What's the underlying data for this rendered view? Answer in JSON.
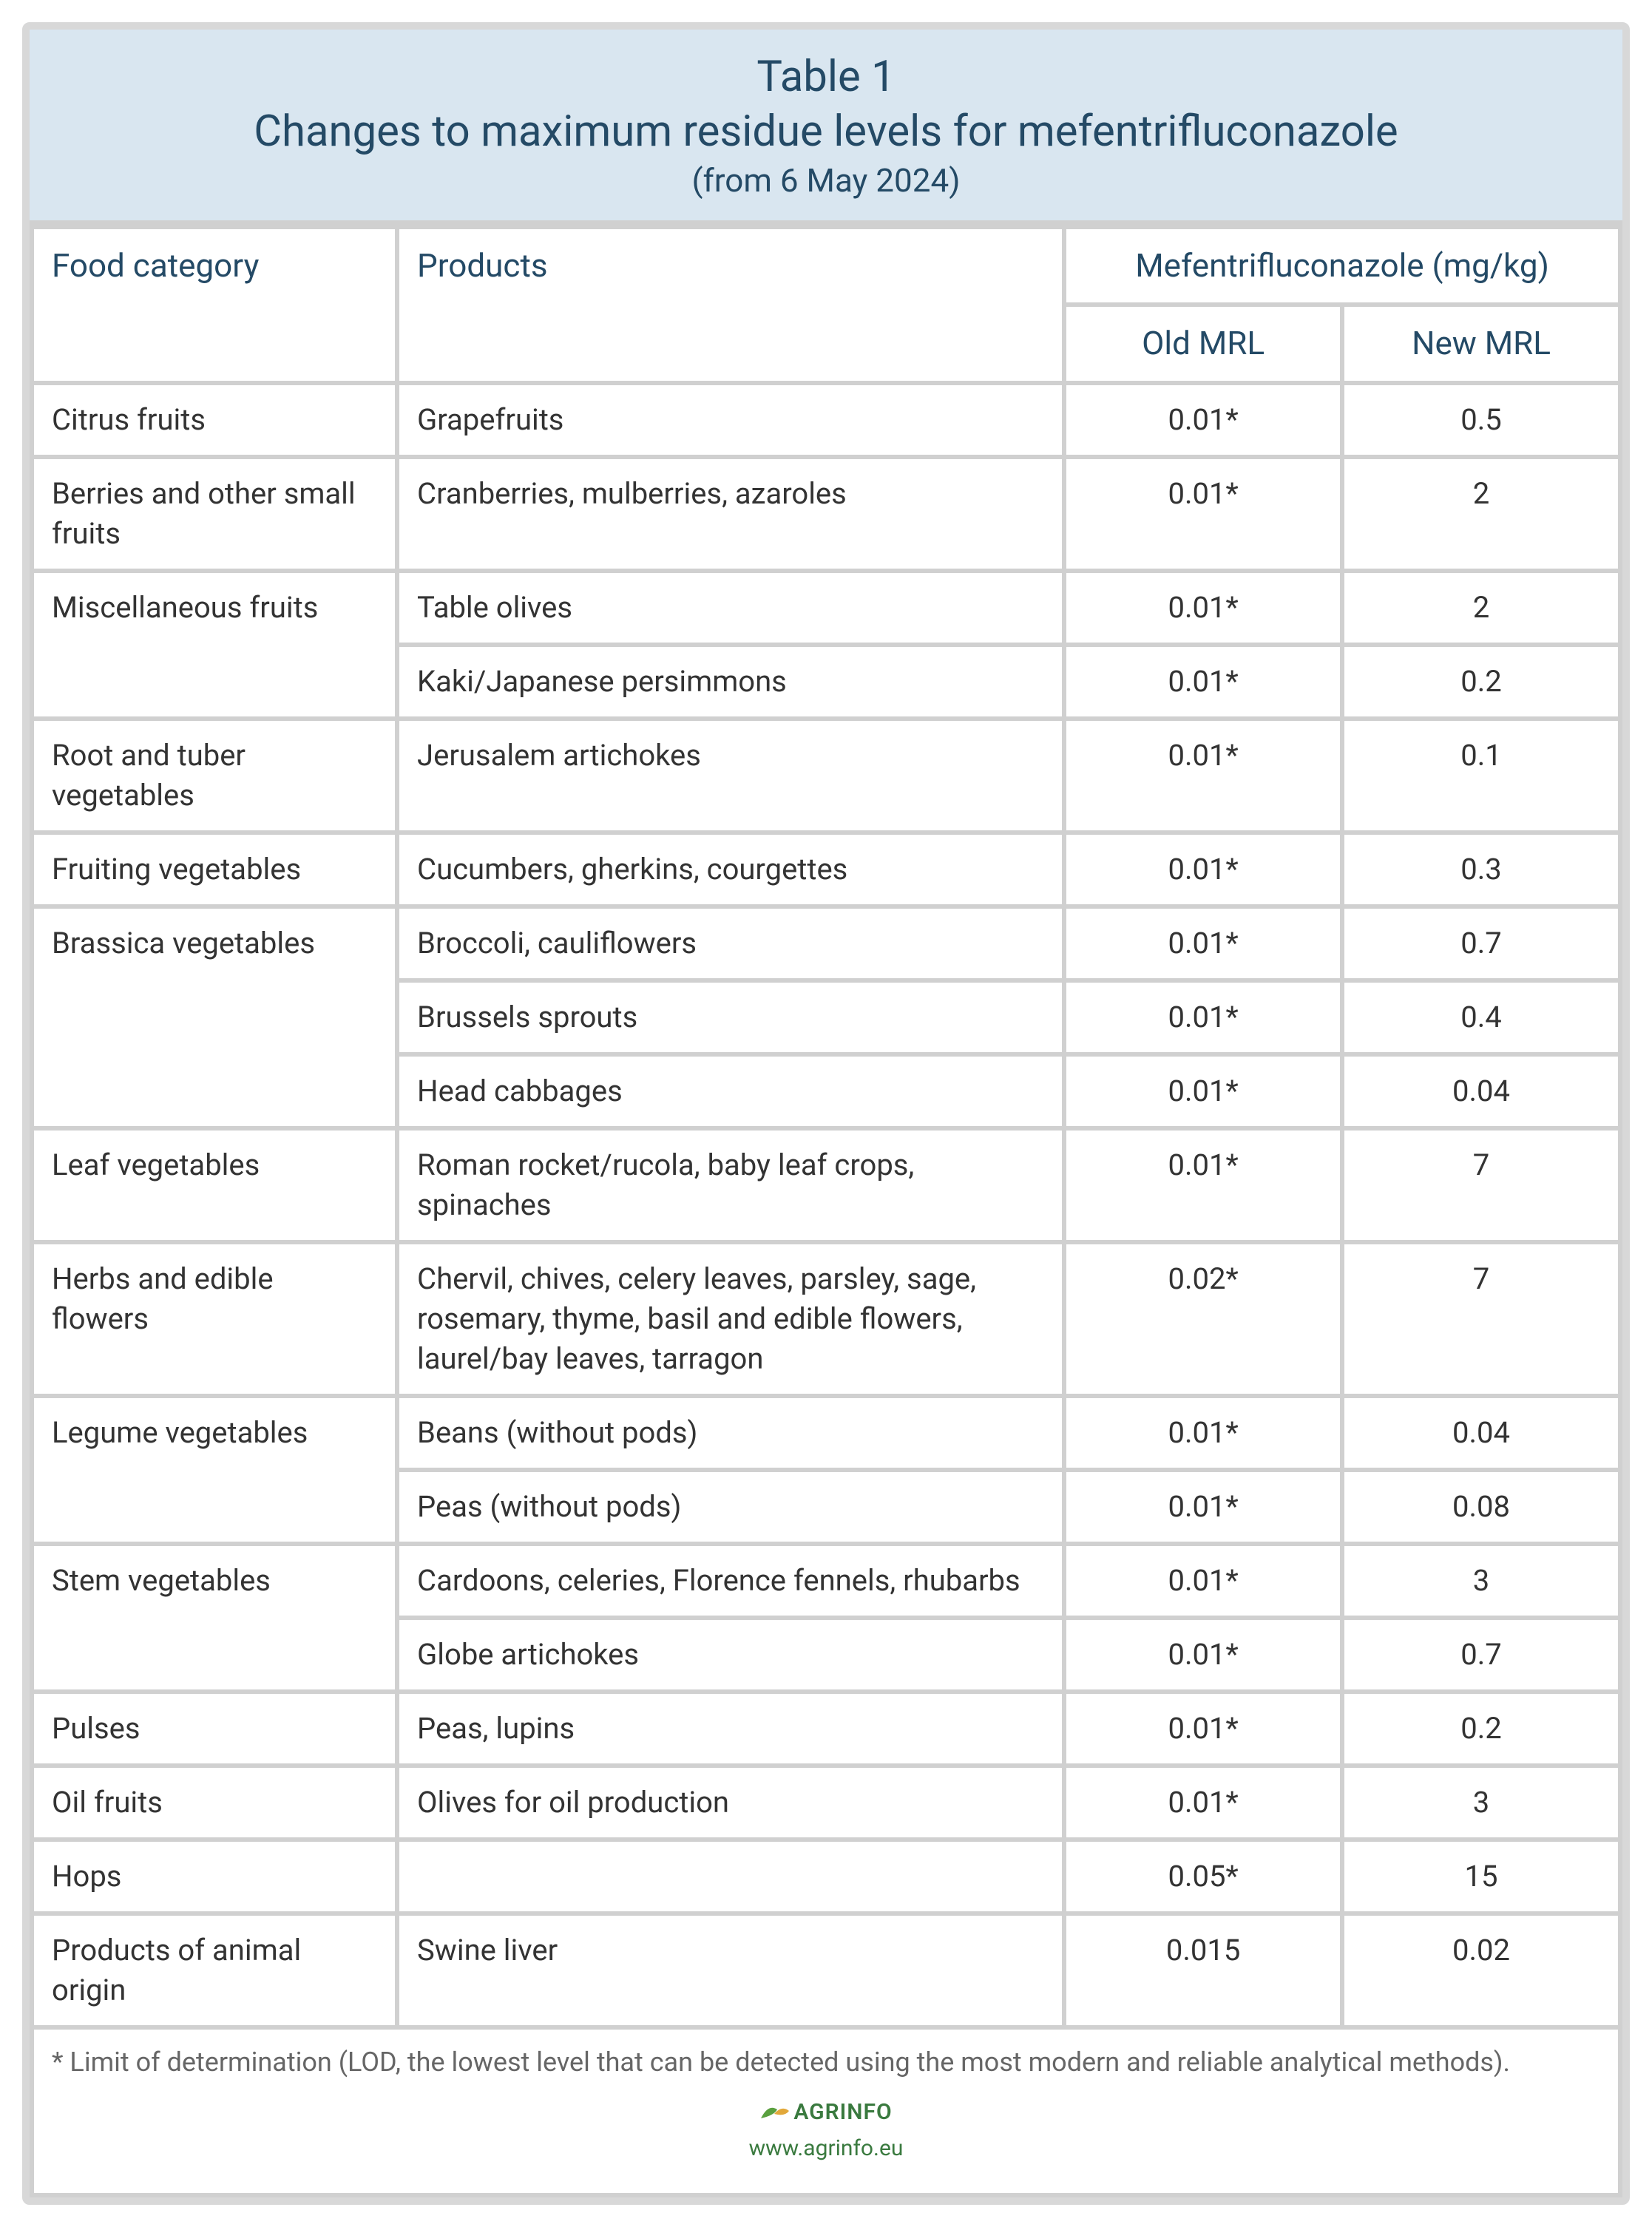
{
  "header": {
    "title_top": "Table 1",
    "title_main": "Changes to maximum residue levels for mefentrifluconazole",
    "title_sub": "(from 6 May 2024)"
  },
  "columns": {
    "category": "Food category",
    "products": "Products",
    "compound": "Mefentrifluconazole (mg/kg)",
    "old": "Old MRL",
    "new": "New MRL"
  },
  "rows": [
    {
      "category": "Citrus fruits",
      "products": "Grapefruits",
      "old": "0.01*",
      "new": "0.5",
      "cat_rowspan": 1
    },
    {
      "category": "Berries and other small fruits",
      "products": "Cranberries, mulberries, azaroles",
      "old": "0.01*",
      "new": "2",
      "cat_rowspan": 1
    },
    {
      "category": "Miscellaneous fruits",
      "products": "Table olives",
      "old": "0.01*",
      "new": "2",
      "cat_rowspan": 2
    },
    {
      "category": "",
      "products": "Kaki/Japanese persimmons",
      "old": "0.01*",
      "new": "0.2",
      "cat_rowspan": 0
    },
    {
      "category": "Root and tuber vegetables",
      "products": "Jerusalem artichokes",
      "old": "0.01*",
      "new": "0.1",
      "cat_rowspan": 1
    },
    {
      "category": "Fruiting vegetables",
      "products": "Cucumbers, gherkins, courgettes",
      "old": "0.01*",
      "new": "0.3",
      "cat_rowspan": 1
    },
    {
      "category": "Brassica vegetables",
      "products": "Broccoli, cauliflowers",
      "old": "0.01*",
      "new": "0.7",
      "cat_rowspan": 3
    },
    {
      "category": "",
      "products": "Brussels sprouts",
      "old": "0.01*",
      "new": "0.4",
      "cat_rowspan": 0
    },
    {
      "category": "",
      "products": "Head cabbages",
      "old": "0.01*",
      "new": "0.04",
      "cat_rowspan": 0
    },
    {
      "category": "Leaf vegetables",
      "products": "Roman rocket/rucola, baby leaf crops, spinaches",
      "old": "0.01*",
      "new": "7",
      "cat_rowspan": 1
    },
    {
      "category": "Herbs and edible flowers",
      "products": "Chervil, chives, celery leaves, parsley, sage, rosemary, thyme, basil and edible flowers, laurel/bay leaves, tarragon",
      "old": "0.02*",
      "new": "7",
      "cat_rowspan": 1
    },
    {
      "category": "Legume vegetables",
      "products": "Beans (without pods)",
      "old": "0.01*",
      "new": "0.04",
      "cat_rowspan": 2
    },
    {
      "category": "",
      "products": "Peas (without pods)",
      "old": "0.01*",
      "new": "0.08",
      "cat_rowspan": 0
    },
    {
      "category": "Stem vegetables",
      "products": "Cardoons, celeries, Florence fennels, rhubarbs",
      "old": "0.01*",
      "new": "3",
      "cat_rowspan": 2
    },
    {
      "category": "",
      "products": "Globe artichokes",
      "old": "0.01*",
      "new": "0.7",
      "cat_rowspan": 0
    },
    {
      "category": "Pulses",
      "products": "Peas, lupins",
      "old": "0.01*",
      "new": "0.2",
      "cat_rowspan": 1
    },
    {
      "category": "Oil fruits",
      "products": "Olives for oil production",
      "old": "0.01*",
      "new": "3",
      "cat_rowspan": 1
    },
    {
      "category": "Hops",
      "products": "",
      "old": "0.05*",
      "new": "15",
      "cat_rowspan": 1
    },
    {
      "category": "Products of animal origin",
      "products": "Swine liver",
      "old": "0.015",
      "new": "0.02",
      "cat_rowspan": 1
    }
  ],
  "footnote": "* Limit of determination (LOD, the lowest level that can be detected using the most modern and reliable analytical methods).",
  "footer": {
    "brand": "AGRINFO",
    "url": "www.agrinfo.eu"
  },
  "style": {
    "header_bg": "#d9e6f0",
    "header_text": "#244a66",
    "border_color": "#d0d0d0",
    "body_text": "#333333",
    "footnote_text": "#666666",
    "brand_color": "#3a7a3f",
    "title_fontsize": 58,
    "subtitle_fontsize": 44,
    "th_fontsize": 44,
    "body_fontsize": 40,
    "footnote_fontsize": 36
  }
}
